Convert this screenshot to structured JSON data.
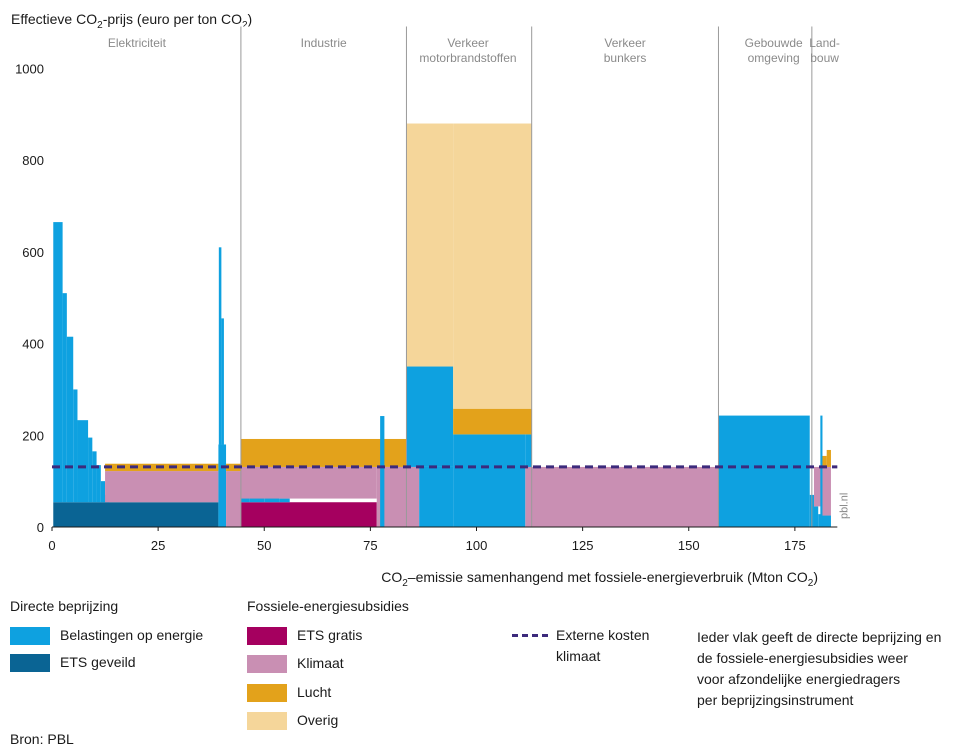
{
  "chart_data": {
    "type": "bar",
    "y_title_parts": [
      "Effectieve CO",
      "2",
      "-prijs (euro per ton CO",
      "2",
      ")"
    ],
    "x_title_parts": [
      "CO",
      "2",
      "–emissie samenhangend met fossiele-energieverbruik (Mton CO",
      "2",
      ")"
    ],
    "xlim": [
      0,
      185
    ],
    "ylim": [
      0,
      1000
    ],
    "x_ticks": [
      0,
      25,
      50,
      75,
      100,
      125,
      150,
      175
    ],
    "y_ticks": [
      0,
      200,
      400,
      600,
      800,
      1000
    ],
    "grid": false,
    "watermark": "pbl.nl",
    "sector_boundaries": [
      44.5,
      83.5,
      113,
      157,
      179
    ],
    "sectors": [
      {
        "id": "elektriciteit",
        "lines": [
          "Elektriciteit"
        ],
        "x_center": 20
      },
      {
        "id": "industrie",
        "lines": [
          "Industrie"
        ],
        "x_center": 64
      },
      {
        "id": "verkeer-motor",
        "lines": [
          "Verkeer",
          "motorbrandstoffen"
        ],
        "x_center": 98
      },
      {
        "id": "verkeer-bunkers",
        "lines": [
          "Verkeer",
          "bunkers"
        ],
        "x_center": 135
      },
      {
        "id": "gebouwde-omgeving",
        "lines": [
          "Gebouwde",
          "omgeving"
        ],
        "x_center": 170
      },
      {
        "id": "landbouw",
        "lines": [
          "Land-",
          "bouw"
        ],
        "x_center": 182
      }
    ],
    "reference_line": {
      "name": "Externe kosten klimaat",
      "y": 131,
      "color": "#3c2a7c"
    },
    "colors": {
      "belastingen": "#0ea1e0",
      "ets_geveild": "#0a6494",
      "ets_gratis": "#a5005f",
      "klimaat": "#c98fb3",
      "lucht": "#e3a21b",
      "overig": "#f5d69a"
    },
    "segments": [
      {
        "series": "ets_geveild",
        "x0": 0.3,
        "x1": 39.2,
        "y0": 0,
        "y1": 54
      },
      {
        "series": "belastingen",
        "x0": 0.3,
        "x1": 2.5,
        "y0": 54,
        "y1": 665
      },
      {
        "series": "belastingen",
        "x0": 2.5,
        "x1": 3.5,
        "y0": 54,
        "y1": 510
      },
      {
        "series": "belastingen",
        "x0": 3.5,
        "x1": 5.0,
        "y0": 54,
        "y1": 415
      },
      {
        "series": "belastingen",
        "x0": 5.0,
        "x1": 6.0,
        "y0": 54,
        "y1": 300
      },
      {
        "series": "belastingen",
        "x0": 6.0,
        "x1": 8.5,
        "y0": 54,
        "y1": 233
      },
      {
        "series": "belastingen",
        "x0": 8.5,
        "x1": 9.5,
        "y0": 54,
        "y1": 195
      },
      {
        "series": "belastingen",
        "x0": 9.5,
        "x1": 10.5,
        "y0": 54,
        "y1": 165
      },
      {
        "series": "belastingen",
        "x0": 10.5,
        "x1": 11.5,
        "y0": 54,
        "y1": 135
      },
      {
        "series": "belastingen",
        "x0": 11.5,
        "x1": 12.5,
        "y0": 54,
        "y1": 100
      },
      {
        "series": "belastingen",
        "x0": 12.5,
        "x1": 13.5,
        "y0": 54,
        "y1": 70
      },
      {
        "series": "klimaat",
        "x0": 12.5,
        "x1": 39.2,
        "y0": 54,
        "y1": 122
      },
      {
        "series": "lucht",
        "x0": 12.5,
        "x1": 39.2,
        "y0": 122,
        "y1": 138
      },
      {
        "series": "belastingen",
        "x0": 39.2,
        "x1": 41.0,
        "y0": 0,
        "y1": 180
      },
      {
        "series": "belastingen",
        "x0": 39.3,
        "x1": 39.9,
        "y0": 180,
        "y1": 610
      },
      {
        "series": "belastingen",
        "x0": 39.9,
        "x1": 40.5,
        "y0": 180,
        "y1": 455
      },
      {
        "series": "klimaat",
        "x0": 41.0,
        "x1": 44.5,
        "y0": 0,
        "y1": 122
      },
      {
        "series": "lucht",
        "x0": 41.0,
        "x1": 44.5,
        "y0": 122,
        "y1": 138
      },
      {
        "series": "ets_gratis",
        "x0": 44.5,
        "x1": 76.5,
        "y0": 0,
        "y1": 54
      },
      {
        "series": "belastingen",
        "x0": 44.5,
        "x1": 46.5,
        "y0": 54,
        "y1": 100
      },
      {
        "series": "belastingen",
        "x0": 46.5,
        "x1": 50.0,
        "y0": 54,
        "y1": 80
      },
      {
        "series": "belastingen",
        "x0": 50.0,
        "x1": 53.5,
        "y0": 54,
        "y1": 70
      },
      {
        "series": "belastingen",
        "x0": 53.5,
        "x1": 56.0,
        "y0": 54,
        "y1": 62
      },
      {
        "series": "klimaat",
        "x0": 44.5,
        "x1": 76.5,
        "y0": 62,
        "y1": 131
      },
      {
        "series": "lucht",
        "x0": 44.5,
        "x1": 83.5,
        "y0": 131,
        "y1": 192
      },
      {
        "series": "klimaat",
        "x0": 76.5,
        "x1": 83.5,
        "y0": 0,
        "y1": 131
      },
      {
        "series": "belastingen",
        "x0": 77.3,
        "x1": 78.3,
        "y0": 0,
        "y1": 242
      },
      {
        "series": "klimaat",
        "x0": 83.5,
        "x1": 86.5,
        "y0": 0,
        "y1": 131
      },
      {
        "series": "belastingen",
        "x0": 83.5,
        "x1": 94.5,
        "y0": 131,
        "y1": 350
      },
      {
        "series": "belastingen",
        "x0": 86.5,
        "x1": 94.5,
        "y0": 0,
        "y1": 131
      },
      {
        "series": "belastingen",
        "x0": 94.5,
        "x1": 111.5,
        "y0": 0,
        "y1": 202
      },
      {
        "series": "klimaat",
        "x0": 111.5,
        "x1": 113.0,
        "y0": 0,
        "y1": 131
      },
      {
        "series": "belastingen",
        "x0": 111.5,
        "x1": 113.0,
        "y0": 131,
        "y1": 202
      },
      {
        "series": "lucht",
        "x0": 94.5,
        "x1": 113.0,
        "y0": 202,
        "y1": 258
      },
      {
        "series": "overig",
        "x0": 83.5,
        "x1": 94.5,
        "y0": 350,
        "y1": 880
      },
      {
        "series": "overig",
        "x0": 94.5,
        "x1": 113.0,
        "y0": 258,
        "y1": 880
      },
      {
        "series": "klimaat",
        "x0": 113.0,
        "x1": 157.0,
        "y0": 0,
        "y1": 131
      },
      {
        "series": "belastingen",
        "x0": 157.0,
        "x1": 178.5,
        "y0": 0,
        "y1": 243
      },
      {
        "series": "belastingen",
        "x0": 178.5,
        "x1": 179.5,
        "y0": 0,
        "y1": 70
      },
      {
        "series": "belastingen",
        "x0": 179.5,
        "x1": 180.5,
        "y0": 0,
        "y1": 45
      },
      {
        "series": "belastingen",
        "x0": 180.5,
        "x1": 181.2,
        "y0": 0,
        "y1": 28
      },
      {
        "series": "klimaat",
        "x0": 179.5,
        "x1": 181.2,
        "y0": 45,
        "y1": 131
      },
      {
        "series": "belastingen",
        "x0": 181.2,
        "x1": 183.5,
        "y0": 0,
        "y1": 25
      },
      {
        "series": "klimaat",
        "x0": 181.2,
        "x1": 183.5,
        "y0": 25,
        "y1": 131
      },
      {
        "series": "lucht",
        "x0": 181.2,
        "x1": 182.5,
        "y0": 131,
        "y1": 155
      },
      {
        "series": "lucht",
        "x0": 182.5,
        "x1": 183.5,
        "y0": 131,
        "y1": 168
      },
      {
        "series": "belastingen",
        "x0": 181.0,
        "x1": 181.5,
        "y0": 0,
        "y1": 243
      }
    ]
  },
  "legend": {
    "directe_title": "Directe beprijzing",
    "directe_items": [
      {
        "label": "Belastingen op energie",
        "color": "#0ea1e0"
      },
      {
        "label": "ETS geveild",
        "color": "#0a6494"
      }
    ],
    "fossiel_title": "Fossiele-energiesubsidies",
    "fossiel_items": [
      {
        "label": "ETS gratis",
        "color": "#a5005f"
      },
      {
        "label": "Klimaat",
        "color": "#c98fb3"
      },
      {
        "label": "Lucht",
        "color": "#e3a21b"
      },
      {
        "label": "Overig",
        "color": "#f5d69a"
      }
    ],
    "externe_line1": "Externe kosten",
    "externe_line2": "klimaat"
  },
  "note_lines": [
    "Ieder vlak geeft de directe beprijzing en",
    "de fossiele-energiesubsidies weer",
    "voor afzondelijke energiedragers",
    "per beprijzingsinstrument"
  ],
  "source": "Bron: PBL"
}
